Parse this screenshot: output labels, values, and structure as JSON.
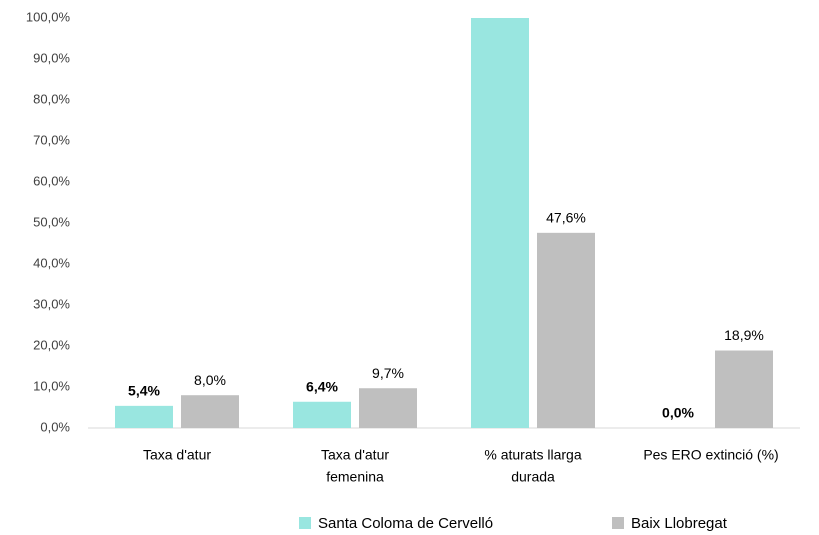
{
  "chart_data": {
    "type": "bar",
    "categories": [
      [
        "Taxa d'atur"
      ],
      [
        "Taxa d'atur",
        "femenina"
      ],
      [
        "% aturats llarga",
        "durada"
      ],
      [
        "Pes ERO extinció (%)"
      ]
    ],
    "series": [
      {
        "name": "Santa Coloma de Cervelló",
        "color": "#99e6e0",
        "values": [
          5.4,
          6.4,
          100,
          0
        ],
        "value_labels": [
          "5,4%",
          "6,4%",
          null,
          "0,0%"
        ]
      },
      {
        "name": "Baix Llobregat",
        "color": "#bfbfbf",
        "values": [
          8.0,
          9.7,
          47.6,
          18.9
        ],
        "value_labels": [
          "8,0%",
          "9,7%",
          "47,6%",
          "18,9%"
        ]
      }
    ],
    "ylim": [
      0,
      100
    ],
    "yticks": [
      {
        "value": 0,
        "label": "0,0%"
      },
      {
        "value": 10,
        "label": "10,0%"
      },
      {
        "value": 20,
        "label": "20,0%"
      },
      {
        "value": 30,
        "label": "30,0%"
      },
      {
        "value": 40,
        "label": "40,0%"
      },
      {
        "value": 50,
        "label": "50,0%"
      },
      {
        "value": 60,
        "label": "60,0%"
      },
      {
        "value": 70,
        "label": "70,0%"
      },
      {
        "value": 80,
        "label": "80,0%"
      },
      {
        "value": 90,
        "label": "90,0%"
      },
      {
        "value": 100,
        "label": "100,0%"
      }
    ],
    "grid": false,
    "legend": "bottom"
  }
}
